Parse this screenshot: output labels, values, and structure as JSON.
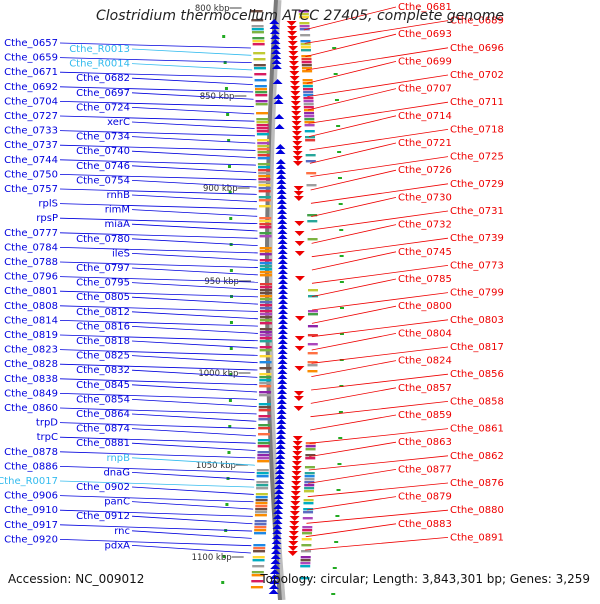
{
  "title": "Clostridium thermocellum ATCC 27405, complete genome",
  "footer": {
    "accession": "Accession: NC_009012",
    "summary": "Topology: circular; Length: 3,843,301 bp; Genes: 3,259"
  },
  "scale_labels": [
    "800 kbp",
    "850 kbp",
    "900 kbp",
    "950 kbp",
    "1000 kbp",
    "1050 kbp",
    "1100 kbp"
  ],
  "colors": {
    "forward_gene": "#0000dd",
    "reverse_gene": "#ee0000",
    "rna_label": "#33bbee",
    "backbone": "#7a7a7a",
    "marker": "#22aa22"
  },
  "left_labels": [
    {
      "text": "Cthe_0657"
    },
    {
      "text": "Cthe_R0013",
      "rna": true
    },
    {
      "text": "Cthe_0659"
    },
    {
      "text": "Cthe_R0014",
      "rna": true
    },
    {
      "text": "Cthe_0671"
    },
    {
      "text": "Cthe_0682"
    },
    {
      "text": "Cthe_0692"
    },
    {
      "text": "Cthe_0697"
    },
    {
      "text": "Cthe_0704"
    },
    {
      "text": "Cthe_0724"
    },
    {
      "text": "Cthe_0727"
    },
    {
      "text": "xerC"
    },
    {
      "text": "Cthe_0733"
    },
    {
      "text": "Cthe_0734"
    },
    {
      "text": "Cthe_0737"
    },
    {
      "text": "Cthe_0740"
    },
    {
      "text": "Cthe_0744"
    },
    {
      "text": "Cthe_0746"
    },
    {
      "text": "Cthe_0750"
    },
    {
      "text": "Cthe_0754"
    },
    {
      "text": "Cthe_0757"
    },
    {
      "text": "rnhB"
    },
    {
      "text": "rplS"
    },
    {
      "text": "rimM"
    },
    {
      "text": "rpsP"
    },
    {
      "text": "miaA"
    },
    {
      "text": "Cthe_0777"
    },
    {
      "text": "Cthe_0780"
    },
    {
      "text": "Cthe_0784"
    },
    {
      "text": "ileS"
    },
    {
      "text": "Cthe_0788"
    },
    {
      "text": "Cthe_0797"
    },
    {
      "text": "Cthe_0796"
    },
    {
      "text": "Cthe_0795"
    },
    {
      "text": "Cthe_0801"
    },
    {
      "text": "Cthe_0805"
    },
    {
      "text": "Cthe_0808"
    },
    {
      "text": "Cthe_0812"
    },
    {
      "text": "Cthe_0814"
    },
    {
      "text": "Cthe_0816"
    },
    {
      "text": "Cthe_0819"
    },
    {
      "text": "Cthe_0818"
    },
    {
      "text": "Cthe_0823"
    },
    {
      "text": "Cthe_0825"
    },
    {
      "text": "Cthe_0828"
    },
    {
      "text": "Cthe_0832"
    },
    {
      "text": "Cthe_0838"
    },
    {
      "text": "Cthe_0845"
    },
    {
      "text": "Cthe_0849"
    },
    {
      "text": "Cthe_0854"
    },
    {
      "text": "Cthe_0860"
    },
    {
      "text": "Cthe_0864"
    },
    {
      "text": "trpD"
    },
    {
      "text": "Cthe_0874"
    },
    {
      "text": "trpC"
    },
    {
      "text": "Cthe_0881"
    },
    {
      "text": "Cthe_0878"
    },
    {
      "text": "rnpB",
      "rna": true
    },
    {
      "text": "Cthe_0886"
    },
    {
      "text": "dnaG"
    },
    {
      "text": "Cthe_R0017",
      "rna": true
    },
    {
      "text": "Cthe_0902"
    },
    {
      "text": "Cthe_0906"
    },
    {
      "text": "panC"
    },
    {
      "text": "Cthe_0910"
    },
    {
      "text": "Cthe_0912"
    },
    {
      "text": "Cthe_0917"
    },
    {
      "text": "rnc"
    },
    {
      "text": "Cthe_0920"
    },
    {
      "text": "pdxA"
    }
  ],
  "right_labels": [
    {
      "text": "Cthe_0681"
    },
    {
      "text": "Cthe_0689"
    },
    {
      "text": "Cthe_0693"
    },
    {
      "text": "Cthe_0696"
    },
    {
      "text": "Cthe_0699"
    },
    {
      "text": "Cthe_0702"
    },
    {
      "text": "Cthe_0707"
    },
    {
      "text": "Cthe_0711"
    },
    {
      "text": "Cthe_0714"
    },
    {
      "text": "Cthe_0718"
    },
    {
      "text": "Cthe_0721"
    },
    {
      "text": "Cthe_0725"
    },
    {
      "text": "Cthe_0726"
    },
    {
      "text": "Cthe_0729"
    },
    {
      "text": "Cthe_0730"
    },
    {
      "text": "Cthe_0731"
    },
    {
      "text": "Cthe_0732"
    },
    {
      "text": "Cthe_0739"
    },
    {
      "text": "Cthe_0745"
    },
    {
      "text": "Cthe_0773"
    },
    {
      "text": "Cthe_0785"
    },
    {
      "text": "Cthe_0799"
    },
    {
      "text": "Cthe_0800"
    },
    {
      "text": "Cthe_0803"
    },
    {
      "text": "Cthe_0804"
    },
    {
      "text": "Cthe_0817"
    },
    {
      "text": "Cthe_0824"
    },
    {
      "text": "Cthe_0856"
    },
    {
      "text": "Cthe_0857"
    },
    {
      "text": "Cthe_0858"
    },
    {
      "text": "Cthe_0859"
    },
    {
      "text": "Cthe_0861"
    },
    {
      "text": "Cthe_0863"
    },
    {
      "text": "Cthe_0862"
    },
    {
      "text": "Cthe_0877"
    },
    {
      "text": "Cthe_0876"
    },
    {
      "text": "Cthe_0879"
    },
    {
      "text": "Cthe_0880"
    },
    {
      "text": "Cthe_0883"
    },
    {
      "text": "Cthe_0891"
    }
  ]
}
